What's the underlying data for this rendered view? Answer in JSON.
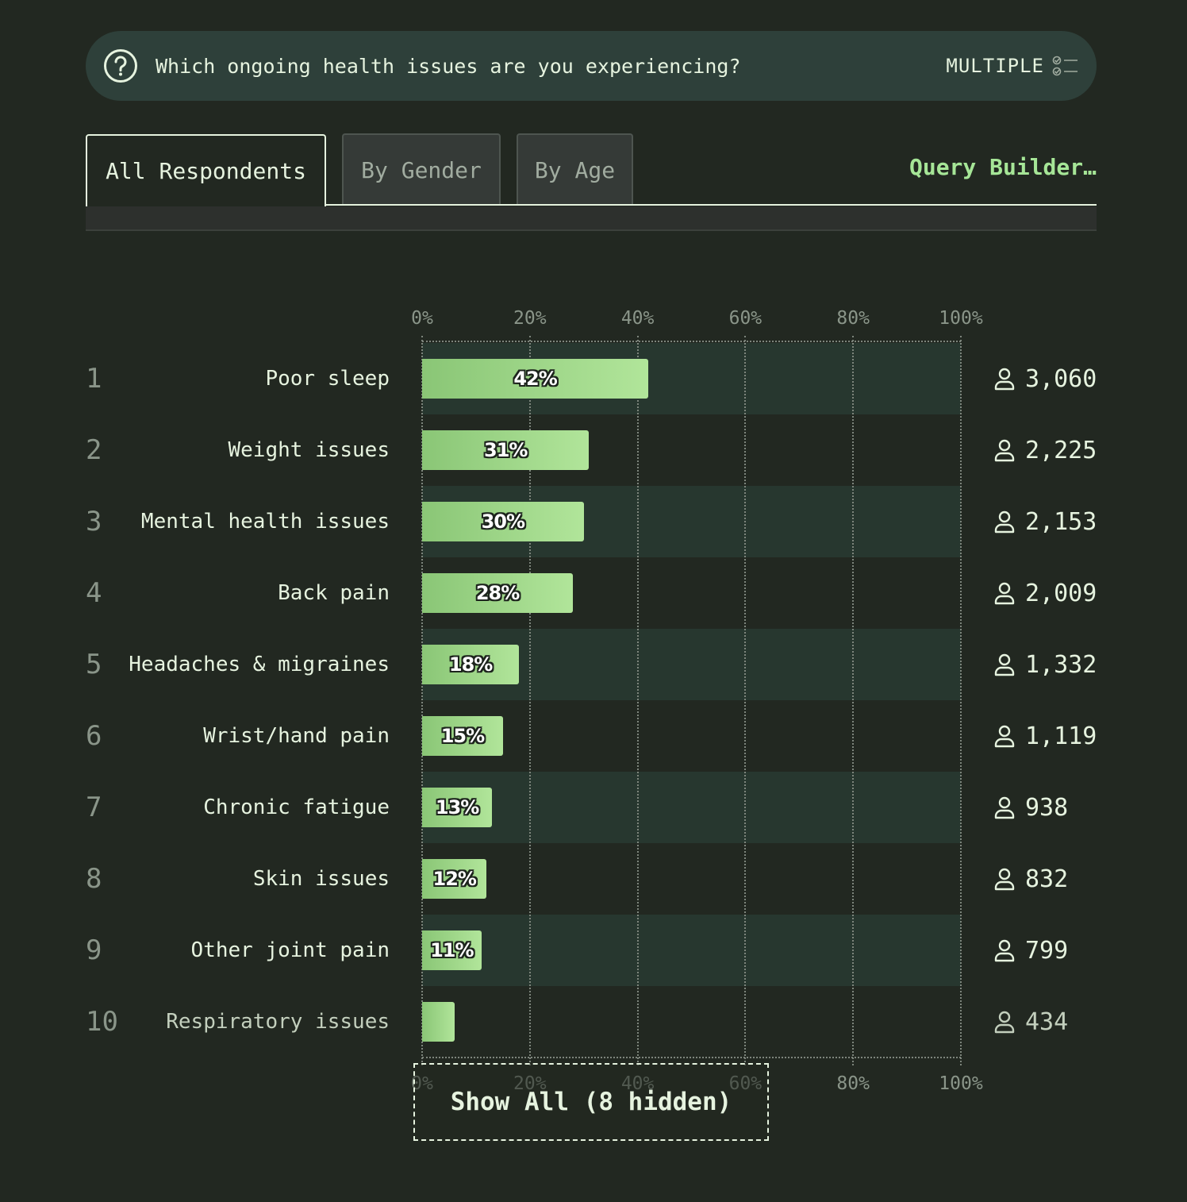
{
  "question": {
    "text": "Which ongoing health issues are you experiencing?",
    "type_label": "MULTIPLE",
    "icon": "question-circle-icon",
    "type_icon": "checklist-icon"
  },
  "tabs": [
    {
      "label": "All Respondents",
      "active": true
    },
    {
      "label": "By Gender",
      "active": false
    },
    {
      "label": "By Age",
      "active": false
    }
  ],
  "query_builder_label": "Query Builder…",
  "show_all_label": "Show All (8 hidden)",
  "count_icon": "person-icon",
  "colors": {
    "background": "#222821",
    "accent": "#a6e697",
    "bar_start": "#8ac676",
    "bar_end": "#b1e59a",
    "band": "#27372f",
    "question_bg": "#2e403a"
  },
  "chart_data": {
    "type": "bar",
    "orientation": "horizontal",
    "xlim": [
      0,
      100
    ],
    "ticks": [
      "0%",
      "20%",
      "40%",
      "60%",
      "80%",
      "100%"
    ],
    "grid": true,
    "ranks": [
      "1",
      "2",
      "3",
      "4",
      "5",
      "6",
      "7",
      "8",
      "9",
      "10"
    ],
    "categories": [
      "Poor sleep",
      "Weight issues",
      "Mental health issues",
      "Back pain",
      "Headaches & migraines",
      "Wrist/hand pain",
      "Chronic fatigue",
      "Skin issues",
      "Other joint pain",
      "Respiratory issues"
    ],
    "values": [
      42,
      31,
      30,
      28,
      18,
      15,
      13,
      12,
      11,
      6
    ],
    "value_labels": [
      "42%",
      "31%",
      "30%",
      "28%",
      "18%",
      "15%",
      "13%",
      "12%",
      "11%",
      ""
    ],
    "counts": [
      "3,060",
      "2,225",
      "2,153",
      "2,009",
      "1,332",
      "1,119",
      "938",
      "832",
      "799",
      "434"
    ]
  }
}
